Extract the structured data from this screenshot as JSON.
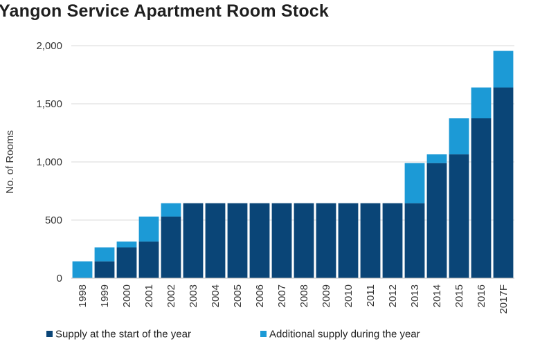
{
  "chart_data": {
    "type": "bar",
    "stacked": true,
    "title": "Yangon Service Apartment Room Stock",
    "ylabel": "No. of Rooms",
    "xlabel": "",
    "ylim": [
      0,
      2000
    ],
    "yticks": [
      0,
      500,
      1000,
      1500,
      2000
    ],
    "ytick_labels": [
      "0",
      "500",
      "1,000",
      "1,500",
      "2,000"
    ],
    "grid": true,
    "legend_position": "bottom",
    "categories": [
      "1998",
      "1999",
      "2000",
      "2001",
      "2002",
      "2003",
      "2004",
      "2005",
      "2006",
      "2007",
      "2008",
      "2009",
      "2010",
      "2011",
      "2012",
      "2013",
      "2014",
      "2015",
      "2016",
      "2017F"
    ],
    "series": [
      {
        "name": "Supply at the start of the year",
        "color": "#0a4577",
        "values": [
          0,
          145,
          265,
          315,
          530,
          645,
          645,
          645,
          645,
          645,
          645,
          645,
          645,
          645,
          645,
          645,
          990,
          1065,
          1375,
          1640
        ]
      },
      {
        "name": "Additional supply during the year",
        "color": "#1c9ad6",
        "values": [
          145,
          120,
          50,
          215,
          115,
          0,
          0,
          0,
          0,
          0,
          0,
          0,
          0,
          0,
          0,
          345,
          75,
          310,
          265,
          315
        ]
      }
    ]
  }
}
